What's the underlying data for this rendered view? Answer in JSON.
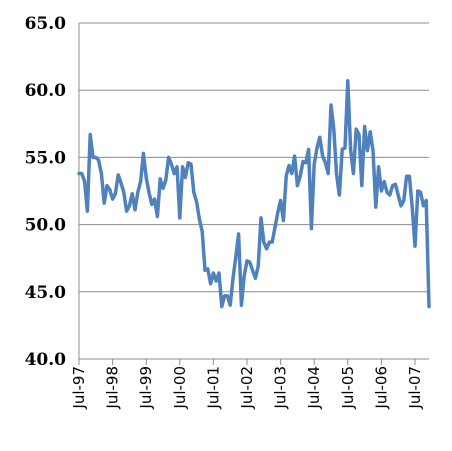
{
  "chart_data": {
    "type": "line",
    "title": "",
    "xlabel": "",
    "ylabel": "",
    "ylim": [
      40,
      65
    ],
    "y_ticks": [
      "40.0",
      "45.0",
      "50.0",
      "55.0",
      "60.0",
      "65.0"
    ],
    "x_tick_labels": [
      "Jul-97",
      "Jul-98",
      "Jul-99",
      "Jul-00",
      "Jul-01",
      "Jul-02",
      "Jul-03",
      "Jul-04",
      "Jul-05",
      "Jul-06",
      "Jul-07"
    ],
    "grid": true,
    "legend": "none",
    "series_color": "#4f81bd",
    "x_start": "Jul-97",
    "x_end": "May-08",
    "series": [
      {
        "values": [
          53.8,
          53.8,
          53.2,
          51.0,
          56.7,
          55.0,
          55.0,
          54.8,
          53.8,
          51.6,
          52.9,
          52.6,
          51.9,
          52.3,
          53.7,
          53.1,
          52.4,
          51.0,
          51.4,
          52.3,
          51.1,
          52.4,
          53.2,
          55.3,
          53.5,
          52.4,
          51.5,
          51.9,
          50.6,
          53.4,
          52.7,
          53.3,
          55.0,
          54.5,
          53.8,
          54.3,
          50.5,
          54.3,
          53.5,
          54.6,
          54.5,
          52.4,
          51.7,
          50.4,
          49.5,
          46.6,
          46.7,
          45.6,
          46.4,
          45.8,
          46.4,
          43.9,
          44.7,
          44.7,
          44.0,
          46.0,
          47.6,
          49.3,
          44.0,
          46.2,
          47.3,
          47.2,
          46.6,
          46.0,
          46.9,
          50.5,
          48.7,
          48.2,
          48.7,
          48.7,
          49.8,
          50.9,
          51.8,
          50.3,
          53.6,
          54.4,
          53.8,
          55.1,
          52.9,
          53.6,
          54.7,
          54.6,
          55.6,
          49.7,
          54.5,
          55.7,
          56.5,
          55.1,
          54.6,
          53.8,
          58.9,
          57.1,
          53.7,
          52.2,
          55.6,
          55.7,
          60.7,
          55.6,
          53.8,
          57.1,
          56.7,
          52.9,
          57.3,
          55.5,
          56.9,
          55.5,
          51.3,
          54.3,
          52.5,
          53.2,
          52.4,
          52.2,
          52.9,
          53.0,
          52.2,
          51.4,
          51.8,
          53.6,
          53.6,
          51.3,
          48.4,
          52.5,
          52.4,
          51.4,
          51.8,
          43.9
        ]
      }
    ]
  }
}
